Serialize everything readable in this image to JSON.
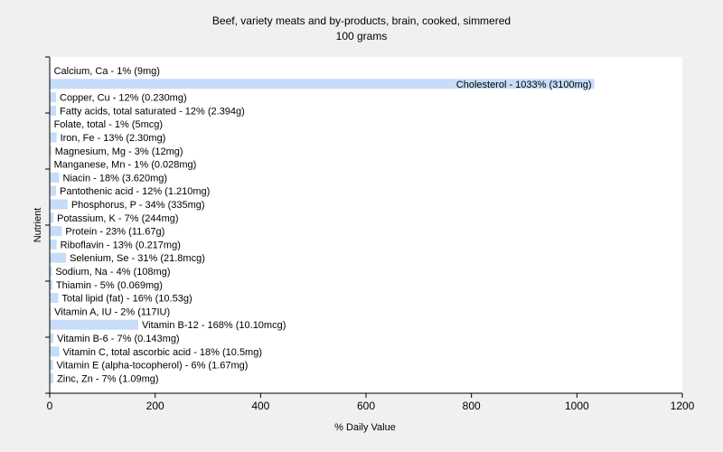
{
  "chart_data": {
    "type": "bar",
    "orientation": "horizontal",
    "title": "Beef, variety meats and by-products, brain, cooked, simmered",
    "subtitle": "100 grams",
    "xlabel": "% Daily Value",
    "ylabel": "Nutrient",
    "xlim": [
      0,
      1200
    ],
    "xticks": [
      0,
      200,
      400,
      600,
      800,
      1000,
      1200
    ],
    "grid": false,
    "bar_color": "#c6dcf8",
    "categories": [
      "Calcium, Ca - 1% (9mg)",
      "Cholesterol - 1033% (3100mg)",
      "Copper, Cu - 12% (0.230mg)",
      "Fatty acids, total saturated - 12% (2.394g)",
      "Folate, total - 1% (5mcg)",
      "Iron, Fe - 13% (2.30mg)",
      "Magnesium, Mg - 3% (12mg)",
      "Manganese, Mn - 1% (0.028mg)",
      "Niacin - 18% (3.620mg)",
      "Pantothenic acid - 12% (1.210mg)",
      "Phosphorus, P - 34% (335mg)",
      "Potassium, K - 7% (244mg)",
      "Protein - 23% (11.67g)",
      "Riboflavin - 13% (0.217mg)",
      "Selenium, Se - 31% (21.8mcg)",
      "Sodium, Na - 4% (108mg)",
      "Thiamin - 5% (0.069mg)",
      "Total lipid (fat) - 16% (10.53g)",
      "Vitamin A, IU - 2% (117IU)",
      "Vitamin B-12 - 168% (10.10mcg)",
      "Vitamin B-6 - 7% (0.143mg)",
      "Vitamin C, total ascorbic acid - 18% (10.5mg)",
      "Vitamin E (alpha-tocopherol) - 6% (1.67mg)",
      "Zinc, Zn - 7% (1.09mg)"
    ],
    "values": [
      1,
      1033,
      12,
      12,
      1,
      13,
      3,
      1,
      18,
      12,
      34,
      7,
      23,
      13,
      31,
      4,
      5,
      16,
      2,
      168,
      7,
      18,
      6,
      7
    ]
  }
}
